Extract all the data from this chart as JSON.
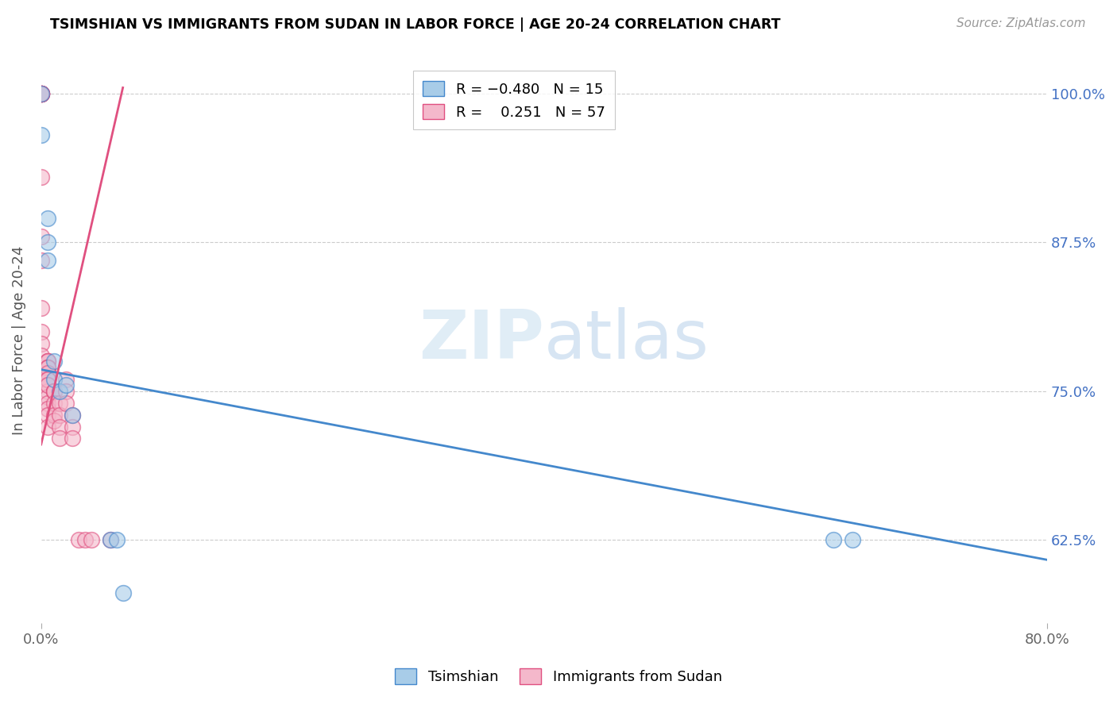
{
  "title": "TSIMSHIAN VS IMMIGRANTS FROM SUDAN IN LABOR FORCE | AGE 20-24 CORRELATION CHART",
  "source": "Source: ZipAtlas.com",
  "ylabel": "In Labor Force | Age 20-24",
  "xlim": [
    0.0,
    0.8
  ],
  "ylim": [
    0.555,
    1.03
  ],
  "xtick_labels": [
    "0.0%",
    "80.0%"
  ],
  "xtick_vals": [
    0.0,
    0.8
  ],
  "ytick_labels": [
    "62.5%",
    "75.0%",
    "87.5%",
    "100.0%"
  ],
  "ytick_vals": [
    0.625,
    0.75,
    0.875,
    1.0
  ],
  "blue_color": "#a8cce8",
  "pink_color": "#f4b8cb",
  "blue_line_color": "#4488cc",
  "pink_line_color": "#e05080",
  "tsimshian_x": [
    0.0,
    0.0,
    0.005,
    0.005,
    0.005,
    0.01,
    0.01,
    0.015,
    0.02,
    0.025,
    0.055,
    0.06,
    0.065,
    0.63,
    0.645
  ],
  "tsimshian_y": [
    1.0,
    0.965,
    0.895,
    0.875,
    0.86,
    0.775,
    0.76,
    0.75,
    0.755,
    0.73,
    0.625,
    0.625,
    0.58,
    0.625,
    0.625
  ],
  "sudan_x": [
    0.0,
    0.0,
    0.0,
    0.0,
    0.0,
    0.0,
    0.0,
    0.0,
    0.0,
    0.0,
    0.0,
    0.0,
    0.0,
    0.0,
    0.0,
    0.0,
    0.0,
    0.0,
    0.0,
    0.0,
    0.005,
    0.005,
    0.005,
    0.005,
    0.005,
    0.005,
    0.005,
    0.005,
    0.005,
    0.005,
    0.005,
    0.005,
    0.005,
    0.005,
    0.005,
    0.005,
    0.005,
    0.01,
    0.01,
    0.01,
    0.01,
    0.01,
    0.01,
    0.015,
    0.015,
    0.015,
    0.015,
    0.02,
    0.02,
    0.02,
    0.025,
    0.025,
    0.025,
    0.03,
    0.035,
    0.04,
    0.055
  ],
  "sudan_y": [
    1.0,
    1.0,
    1.0,
    1.0,
    1.0,
    1.0,
    1.0,
    1.0,
    1.0,
    1.0,
    0.93,
    0.88,
    0.86,
    0.82,
    0.8,
    0.79,
    0.78,
    0.77,
    0.765,
    0.76,
    0.775,
    0.775,
    0.775,
    0.77,
    0.77,
    0.77,
    0.765,
    0.76,
    0.755,
    0.75,
    0.745,
    0.74,
    0.735,
    0.73,
    0.72,
    0.76,
    0.755,
    0.75,
    0.75,
    0.75,
    0.74,
    0.73,
    0.725,
    0.74,
    0.73,
    0.72,
    0.71,
    0.76,
    0.75,
    0.74,
    0.73,
    0.72,
    0.71,
    0.625,
    0.625,
    0.625,
    0.625
  ],
  "blue_trendline_x": [
    0.0,
    0.8
  ],
  "blue_trendline_y": [
    0.768,
    0.608
  ],
  "pink_trendline_x": [
    0.0,
    0.065
  ],
  "pink_trendline_y": [
    0.705,
    1.005
  ]
}
